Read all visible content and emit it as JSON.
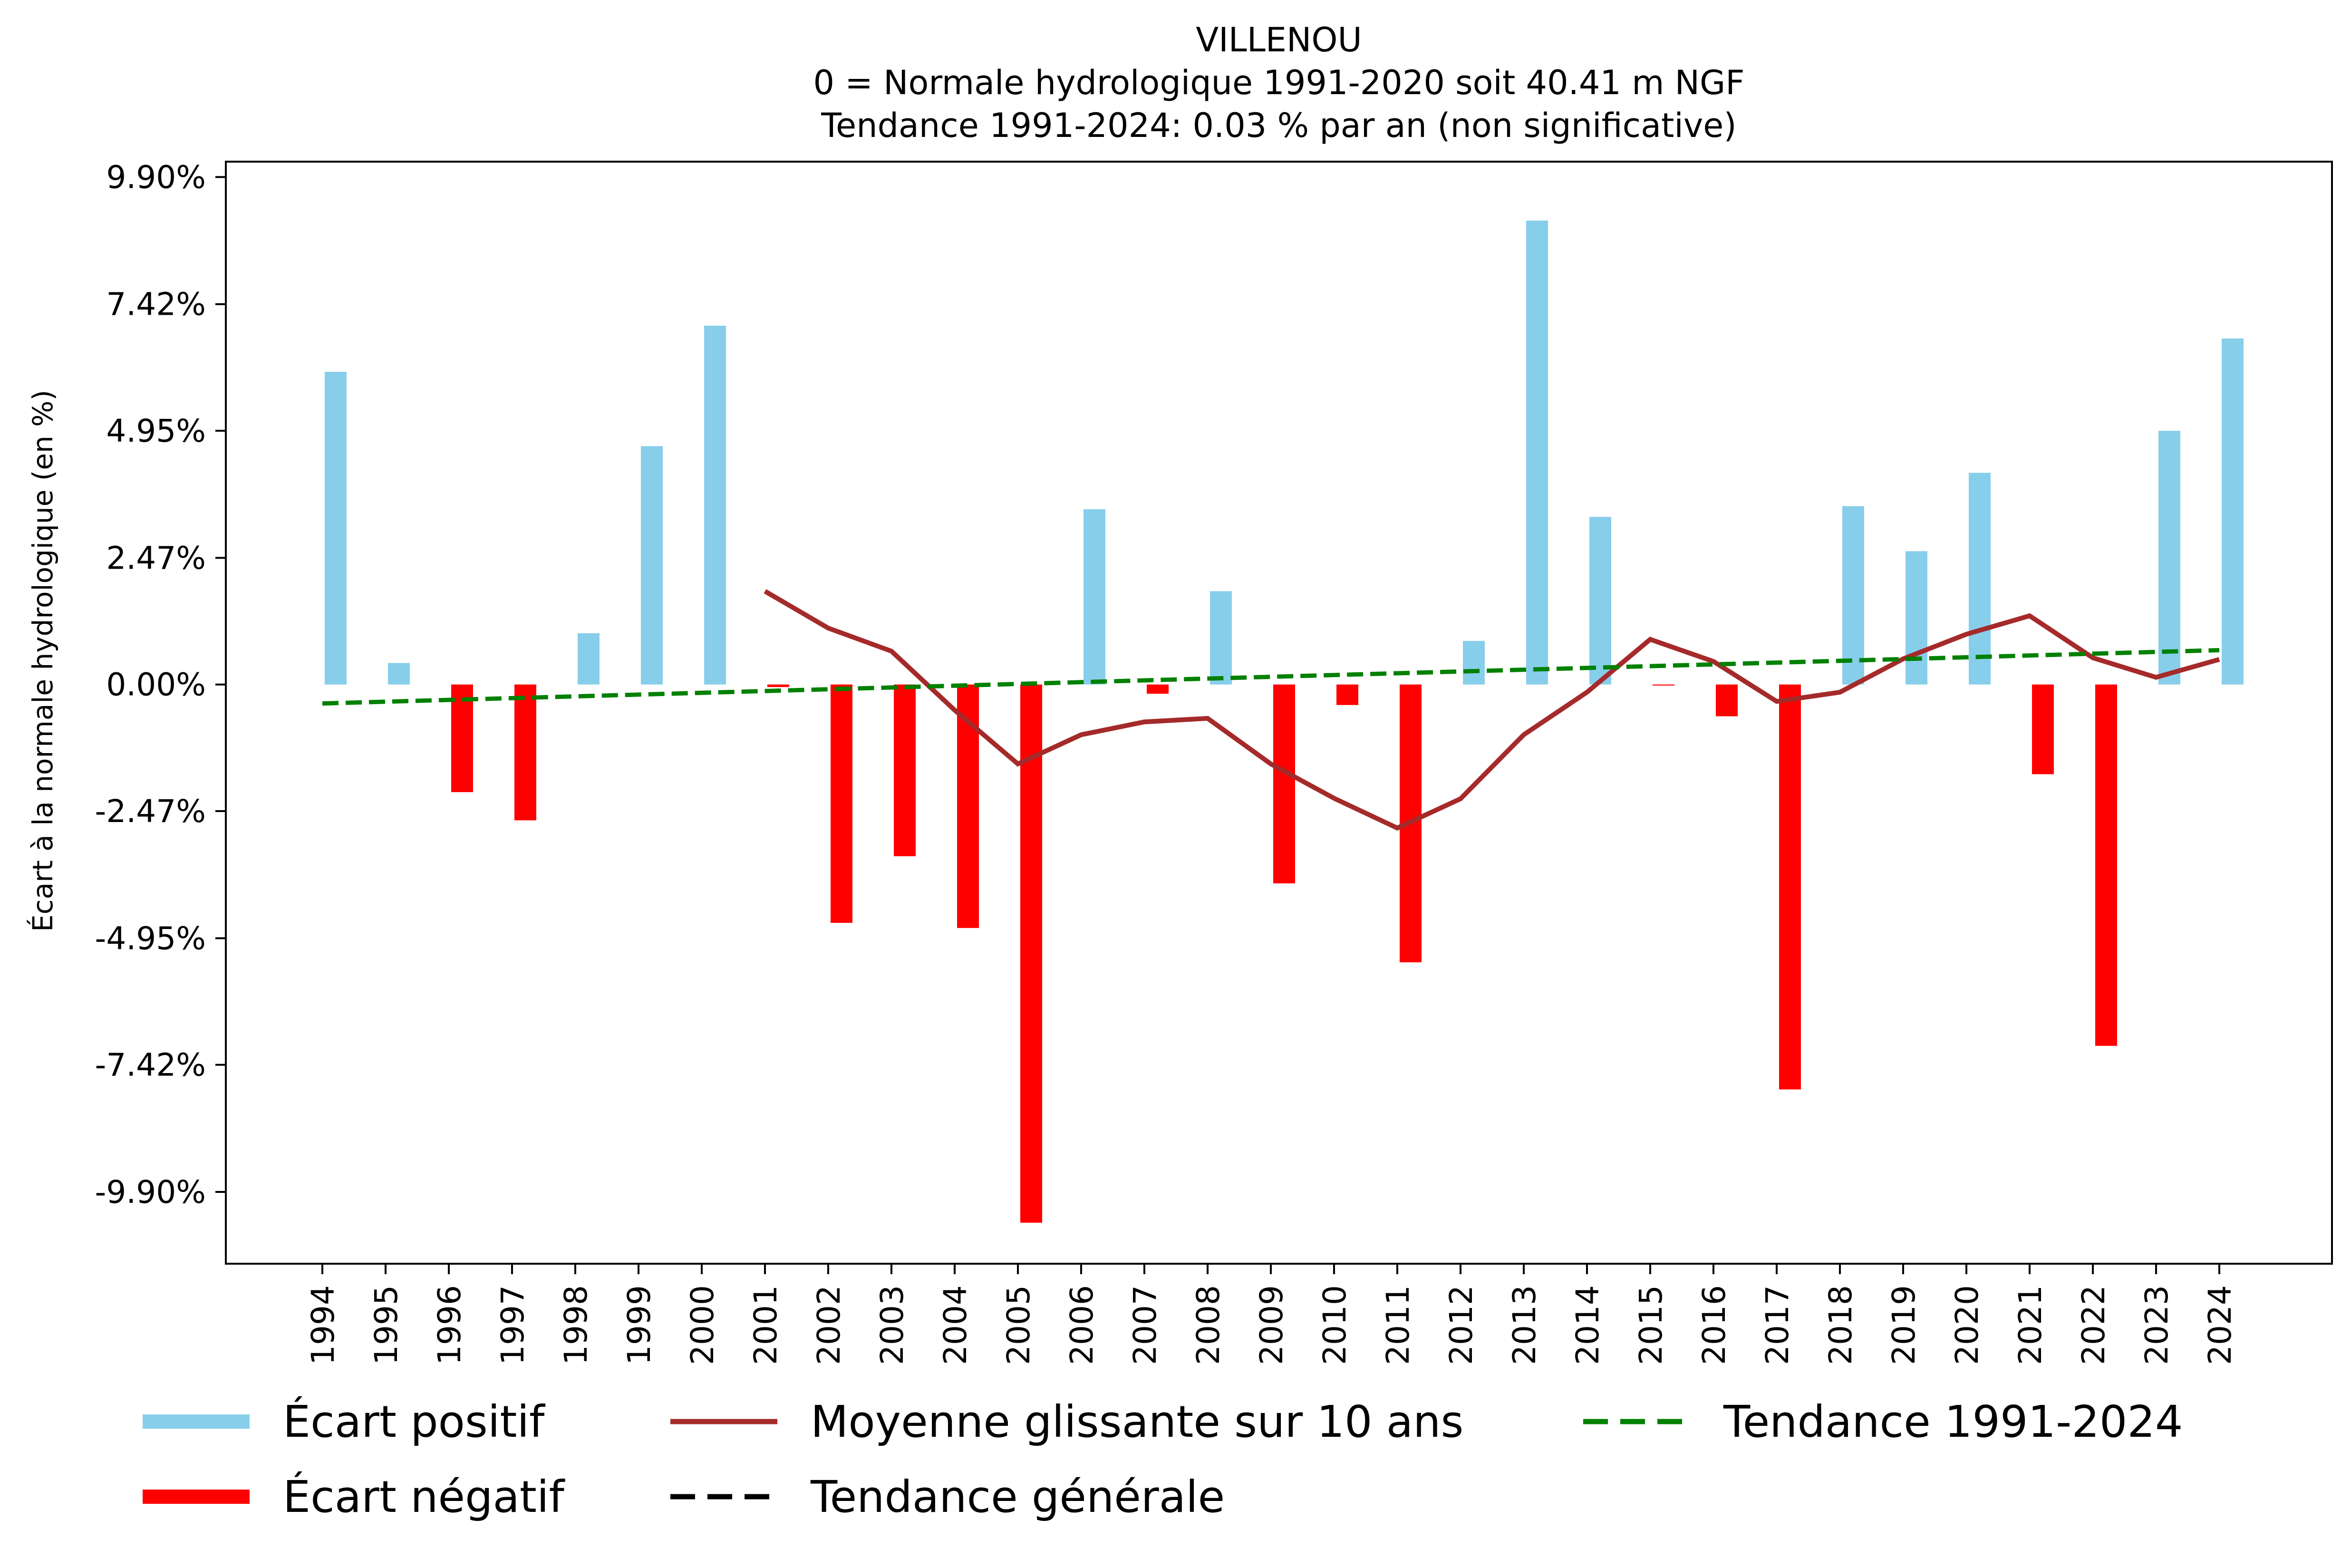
{
  "chart_data": {
    "type": "bar",
    "title_lines": [
      "VILLENOU",
      "0 = Normale hydrologique 1991-2020 soit 40.41 m NGF",
      "Tendance 1991-2024: 0.03 % par an (non significative)"
    ],
    "xlabel": "",
    "ylabel": "Écart à la normale hydrologique (en %)",
    "ylim": [
      -11.3,
      10.2
    ],
    "yticks": [
      9.9,
      7.42,
      4.95,
      2.47,
      0.0,
      -2.47,
      -4.95,
      -7.42,
      -9.9
    ],
    "ytick_labels": [
      "9.90%",
      "7.42%",
      "4.95%",
      "2.47%",
      "0.00%",
      "-2.47%",
      "-4.95%",
      "-7.42%",
      "-9.90%"
    ],
    "categories": [
      "1994",
      "1995",
      "1996",
      "1997",
      "1998",
      "1999",
      "2000",
      "2001",
      "2002",
      "2003",
      "2004",
      "2005",
      "2006",
      "2007",
      "2008",
      "2009",
      "2010",
      "2011",
      "2012",
      "2013",
      "2014",
      "2015",
      "2016",
      "2017",
      "2018",
      "2019",
      "2020",
      "2021",
      "2022",
      "2023",
      "2024"
    ],
    "grid": false,
    "legend_position": "bottom",
    "series": [
      {
        "name": "Écart positif / Écart négatif",
        "kind": "bar",
        "positive_color": "#87CEEB",
        "negative_color": "#FF0000",
        "values": [
          6.1,
          0.42,
          -2.1,
          -2.65,
          1.0,
          4.65,
          7.0,
          -0.05,
          -4.65,
          -3.35,
          -4.75,
          -10.5,
          3.42,
          -0.18,
          1.82,
          -3.88,
          -0.4,
          -5.42,
          0.85,
          9.05,
          3.27,
          -0.02,
          -0.62,
          -7.9,
          3.48,
          2.6,
          4.13,
          -1.75,
          -7.05,
          4.95,
          6.75
        ]
      },
      {
        "name": "Moyenne glissante sur 10 ans",
        "kind": "line",
        "color": "#A52A2A",
        "x": [
          "2001",
          "2002",
          "2003",
          "2004",
          "2005",
          "2006",
          "2007",
          "2008",
          "2009",
          "2010",
          "2011",
          "2012",
          "2013",
          "2014",
          "2015",
          "2016",
          "2017",
          "2018",
          "2019",
          "2020",
          "2021",
          "2022",
          "2023",
          "2024"
        ],
        "values": [
          1.82,
          1.1,
          0.65,
          -0.5,
          -1.55,
          -0.98,
          -0.73,
          -0.66,
          -1.55,
          -2.22,
          -2.8,
          -2.23,
          -0.98,
          -0.15,
          0.88,
          0.45,
          -0.33,
          -0.15,
          0.5,
          0.98,
          1.34,
          0.52,
          0.14,
          0.49
        ]
      },
      {
        "name": "Tendance 1991-2024",
        "kind": "line-dashed",
        "color": "#008000",
        "x": [
          "1994",
          "2024"
        ],
        "values": [
          -0.37,
          0.67
        ]
      },
      {
        "name": "Tendance générale",
        "kind": "line-dashed",
        "color": "#000000",
        "x": [],
        "values": []
      }
    ],
    "legend": [
      {
        "label": "Écart positif",
        "color": "#87CEEB",
        "style": "thick"
      },
      {
        "label": "Écart négatif",
        "color": "#FF0000",
        "style": "thick"
      },
      {
        "label": "Moyenne glissante sur 10 ans",
        "color": "#A52A2A",
        "style": "solid"
      },
      {
        "label": "Tendance générale",
        "color": "#000000",
        "style": "dashed"
      },
      {
        "label": "Tendance 1991-2024",
        "color": "#008000",
        "style": "dashed"
      }
    ]
  }
}
